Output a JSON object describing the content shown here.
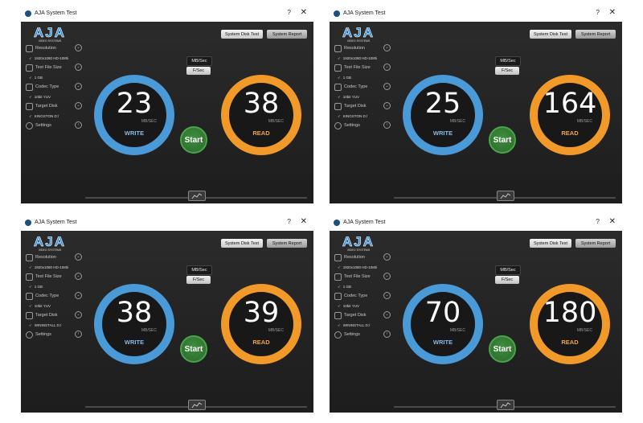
{
  "windows": [
    {
      "title": "AJA System Test",
      "help": "?",
      "close": "✕",
      "logo": {
        "wordmark": "AJA",
        "tagline": "VIDEO SYSTEMS"
      },
      "buttons": {
        "disk_test": "System Disk Test",
        "report": "System Report"
      },
      "sidebar": [
        {
          "label": "Resolution",
          "value": "1920x1080 HD-1080i",
          "icon": "resolution-icon"
        },
        {
          "label": "Test File Size",
          "value": "1 GB",
          "icon": "file-size-icon"
        },
        {
          "label": "Codec Type",
          "value": "10bit YUV",
          "icon": "codec-icon"
        },
        {
          "label": "Target Disk",
          "value": "KINGSTON D:/",
          "icon": "disk-icon"
        },
        {
          "label": "Settings",
          "icon": "settings-icon"
        }
      ],
      "units": {
        "mb": "MB/Sec",
        "fps": "F/Sec"
      },
      "write": {
        "value": "23",
        "unit": "MB/SEC",
        "label": "WRITE"
      },
      "read": {
        "value": "38",
        "unit": "MB/SEC",
        "label": "READ"
      },
      "start": "Start"
    },
    {
      "title": "AJA System Test",
      "help": "?",
      "close": "✕",
      "logo": {
        "wordmark": "AJA",
        "tagline": "VIDEO SYSTEMS"
      },
      "buttons": {
        "disk_test": "System Disk Test",
        "report": "System Report"
      },
      "sidebar": [
        {
          "label": "Resolution",
          "value": "1920x1080 HD-1080i",
          "icon": "resolution-icon"
        },
        {
          "label": "Test File Size",
          "value": "1 GB",
          "icon": "file-size-icon"
        },
        {
          "label": "Codec Type",
          "value": "10bit YUV",
          "icon": "codec-icon"
        },
        {
          "label": "Target Disk",
          "value": "KINGSTON D:/",
          "icon": "disk-icon"
        },
        {
          "label": "Settings",
          "icon": "settings-icon"
        }
      ],
      "units": {
        "mb": "MB/Sec",
        "fps": "F/Sec"
      },
      "write": {
        "value": "25",
        "unit": "MB/SEC",
        "label": "WRITE"
      },
      "read": {
        "value": "164",
        "unit": "MB/SEC",
        "label": "READ"
      },
      "start": "Start"
    },
    {
      "title": "AJA System Test",
      "help": "?",
      "close": "✕",
      "logo": {
        "wordmark": "AJA",
        "tagline": "VIDEO SYSTEMS"
      },
      "buttons": {
        "disk_test": "System Disk Test",
        "report": "System Report"
      },
      "sidebar": [
        {
          "label": "Resolution",
          "value": "1920x1080 HD-1080i",
          "icon": "resolution-icon"
        },
        {
          "label": "Test File Size",
          "value": "1 GB",
          "icon": "file-size-icon"
        },
        {
          "label": "Codec Type",
          "value": "10bit YUV",
          "icon": "codec-icon"
        },
        {
          "label": "Target Disk",
          "value": "WININSTALL D:/",
          "icon": "disk-icon"
        },
        {
          "label": "Settings",
          "icon": "settings-icon"
        }
      ],
      "units": {
        "mb": "MB/Sec",
        "fps": "F/Sec"
      },
      "write": {
        "value": "38",
        "unit": "MB/SEC",
        "label": "WRITE"
      },
      "read": {
        "value": "39",
        "unit": "MB/SEC",
        "label": "READ"
      },
      "start": "Start"
    },
    {
      "title": "AJA System Test",
      "help": "?",
      "close": "✕",
      "logo": {
        "wordmark": "AJA",
        "tagline": "VIDEO SYSTEMS"
      },
      "buttons": {
        "disk_test": "System Disk Test",
        "report": "System Report"
      },
      "sidebar": [
        {
          "label": "Resolution",
          "value": "1920x1080 HD-1080i",
          "icon": "resolution-icon"
        },
        {
          "label": "Test File Size",
          "value": "1 GB",
          "icon": "file-size-icon"
        },
        {
          "label": "Codec Type",
          "value": "10bit YUV",
          "icon": "codec-icon"
        },
        {
          "label": "Target Disk",
          "value": "WININSTALL D:/",
          "icon": "disk-icon"
        },
        {
          "label": "Settings",
          "icon": "settings-icon"
        }
      ],
      "units": {
        "mb": "MB/Sec",
        "fps": "F/Sec"
      },
      "write": {
        "value": "70",
        "unit": "MB/SEC",
        "label": "WRITE"
      },
      "read": {
        "value": "180",
        "unit": "MB/SEC",
        "label": "READ"
      },
      "start": "Start"
    }
  ],
  "colors": {
    "write_ring": "#4a9ad8",
    "read_ring": "#f19a29",
    "start_button": "#3f8d3f",
    "logo_blue": "#2f8fe0"
  }
}
